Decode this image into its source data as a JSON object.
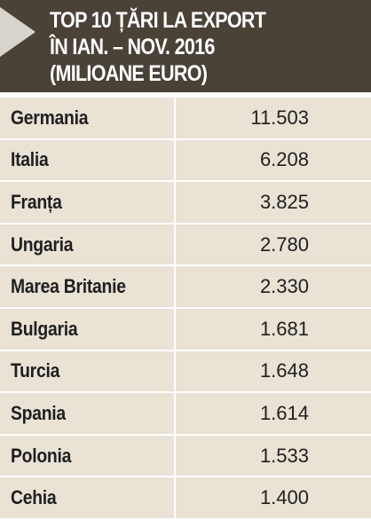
{
  "header": {
    "title": [
      "TOP 10 ȚĂRI LA EXPORT",
      "ÎN IAN. – NOV. 2016",
      "(MILIOANE EURO)"
    ]
  },
  "table": {
    "rows": [
      [
        "Germania",
        "11.503"
      ],
      [
        "Italia",
        "6.208"
      ],
      [
        "Franța",
        "3.825"
      ],
      [
        "Ungaria",
        "2.780"
      ],
      [
        "Marea Britanie",
        "2.330"
      ],
      [
        "Bulgaria",
        "1.681"
      ],
      [
        "Turcia",
        "1.648"
      ],
      [
        "Spania",
        "1.614"
      ],
      [
        "Polonia",
        "1.533"
      ],
      [
        "Cehia",
        "1.400"
      ]
    ]
  }
}
